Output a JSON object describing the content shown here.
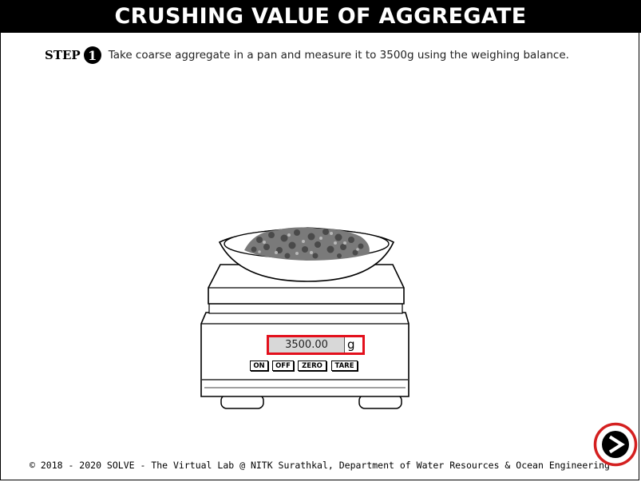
{
  "header": {
    "title": "CRUSHING VALUE OF AGGREGATE"
  },
  "step": {
    "label": "STEP",
    "number": "1",
    "instruction": "Take coarse aggregate in a pan and measure it to 3500g using the weighing balance."
  },
  "balance": {
    "reading": "3500.00",
    "unit": "g",
    "buttons": {
      "on": "ON",
      "off": "OFF",
      "zero": "ZERO",
      "tare": "TARE"
    }
  },
  "footer": {
    "text": "© 2018 - 2020 SOLVE - The Virtual Lab @ NITK Surathkal, Department of Water Resources & Ocean Engineering"
  },
  "colors": {
    "highlight": "#e3101c",
    "header_bg": "#000000"
  },
  "icons": {
    "next": "next-arrow-icon"
  }
}
